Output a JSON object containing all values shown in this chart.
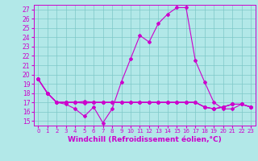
{
  "xlabel": "Windchill (Refroidissement éolien,°C)",
  "background_color": "#b2e8e8",
  "grid_color": "#7ec8c8",
  "line_color": "#cc00cc",
  "xlim": [
    -0.5,
    23.5
  ],
  "ylim": [
    14.5,
    27.5
  ],
  "yticks": [
    15,
    16,
    17,
    18,
    19,
    20,
    21,
    22,
    23,
    24,
    25,
    26,
    27
  ],
  "xticks": [
    0,
    1,
    2,
    3,
    4,
    5,
    6,
    7,
    8,
    9,
    10,
    11,
    12,
    13,
    14,
    15,
    16,
    17,
    18,
    19,
    20,
    21,
    22,
    23
  ],
  "series1_x": [
    0,
    1,
    2,
    3,
    4,
    5,
    6,
    7,
    8,
    9,
    10,
    11,
    12,
    13,
    14,
    15,
    16,
    17,
    18,
    19,
    20,
    21,
    22,
    23
  ],
  "series1_y": [
    19.5,
    18.0,
    17.0,
    16.8,
    16.3,
    15.5,
    16.5,
    14.8,
    16.3,
    19.2,
    21.7,
    24.2,
    23.5,
    25.5,
    26.5,
    27.2,
    27.2,
    21.5,
    19.2,
    17.0,
    16.3,
    16.3,
    16.8,
    16.5
  ],
  "series2_x": [
    0,
    1,
    2,
    3,
    4,
    5,
    6,
    7,
    8,
    9,
    10,
    11,
    12,
    13,
    14,
    15,
    16,
    17,
    18,
    19,
    20,
    21,
    22,
    23
  ],
  "series2_y": [
    19.5,
    18.0,
    17.0,
    17.0,
    17.0,
    17.0,
    17.0,
    17.0,
    17.0,
    17.0,
    17.0,
    17.0,
    17.0,
    17.0,
    17.0,
    17.0,
    17.0,
    17.0,
    16.5,
    16.3,
    16.5,
    16.8,
    16.8,
    16.5
  ],
  "series3_x": [
    0,
    1,
    2,
    3,
    4,
    5,
    6,
    7,
    8,
    9,
    10,
    11,
    12,
    13,
    14,
    15,
    16,
    17,
    18,
    19,
    20,
    21,
    22,
    23
  ],
  "series3_y": [
    19.5,
    18.0,
    17.0,
    17.0,
    17.0,
    17.1,
    17.0,
    17.0,
    17.0,
    17.0,
    17.0,
    17.0,
    17.0,
    17.0,
    17.0,
    17.0,
    17.0,
    17.0,
    16.5,
    16.3,
    16.5,
    16.8,
    16.8,
    16.5
  ],
  "series4_x": [
    0,
    1,
    2,
    3,
    4,
    5,
    6,
    7,
    8,
    9,
    10,
    11,
    12,
    13,
    14,
    15,
    16,
    17,
    18,
    19,
    20,
    21,
    22,
    23
  ],
  "series4_y": [
    19.5,
    18.0,
    17.0,
    17.0,
    17.0,
    16.9,
    17.0,
    17.0,
    17.0,
    17.0,
    17.0,
    17.0,
    17.0,
    17.0,
    17.0,
    17.0,
    17.0,
    17.0,
    16.5,
    16.3,
    16.5,
    16.8,
    16.8,
    16.5
  ],
  "marker": "D",
  "markersize": 2.0,
  "linewidth": 0.8,
  "xlabel_fontsize": 6.5,
  "ytick_fontsize": 5.5,
  "xtick_fontsize": 5.0
}
